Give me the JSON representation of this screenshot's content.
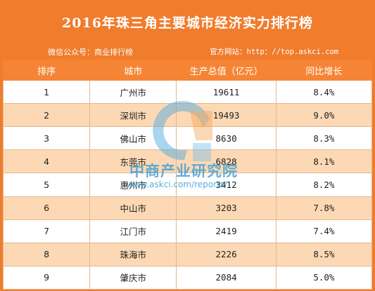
{
  "header": {
    "title": "2016年珠三角主要城市经济实力排行榜",
    "wechat": "微信公众号：商业排行榜",
    "website": "官方网站：http：//top.askci.com"
  },
  "table": {
    "columns": [
      "排序",
      "城市",
      "生产总值（亿元）",
      "同比增长"
    ],
    "rows": [
      {
        "rank": "1",
        "city": "广州市",
        "gdp": "19611",
        "growth": "8.4%"
      },
      {
        "rank": "2",
        "city": "深圳市",
        "gdp": "19493",
        "growth": "9.0%"
      },
      {
        "rank": "3",
        "city": "佛山市",
        "gdp": "8630",
        "growth": "8.3%"
      },
      {
        "rank": "4",
        "city": "东莞市",
        "gdp": "6828",
        "growth": "8.1%"
      },
      {
        "rank": "5",
        "city": "惠州市",
        "gdp": "3412",
        "growth": "8.2%"
      },
      {
        "rank": "6",
        "city": "中山市",
        "gdp": "3203",
        "growth": "7.8%"
      },
      {
        "rank": "7",
        "city": "江门市",
        "gdp": "2419",
        "growth": "7.4%"
      },
      {
        "rank": "8",
        "city": "珠海市",
        "gdp": "2226",
        "growth": "8.5%"
      },
      {
        "rank": "9",
        "city": "肇庆市",
        "gdp": "2084",
        "growth": "5.0%"
      }
    ]
  },
  "watermark": {
    "name": "中商产业研究院",
    "url": "www.askci.com/reports/"
  },
  "colors": {
    "background": "#f07c2c",
    "header_row": "#f58535",
    "stripe": "#fcd9b4",
    "watermark": "#3a9fd8"
  }
}
